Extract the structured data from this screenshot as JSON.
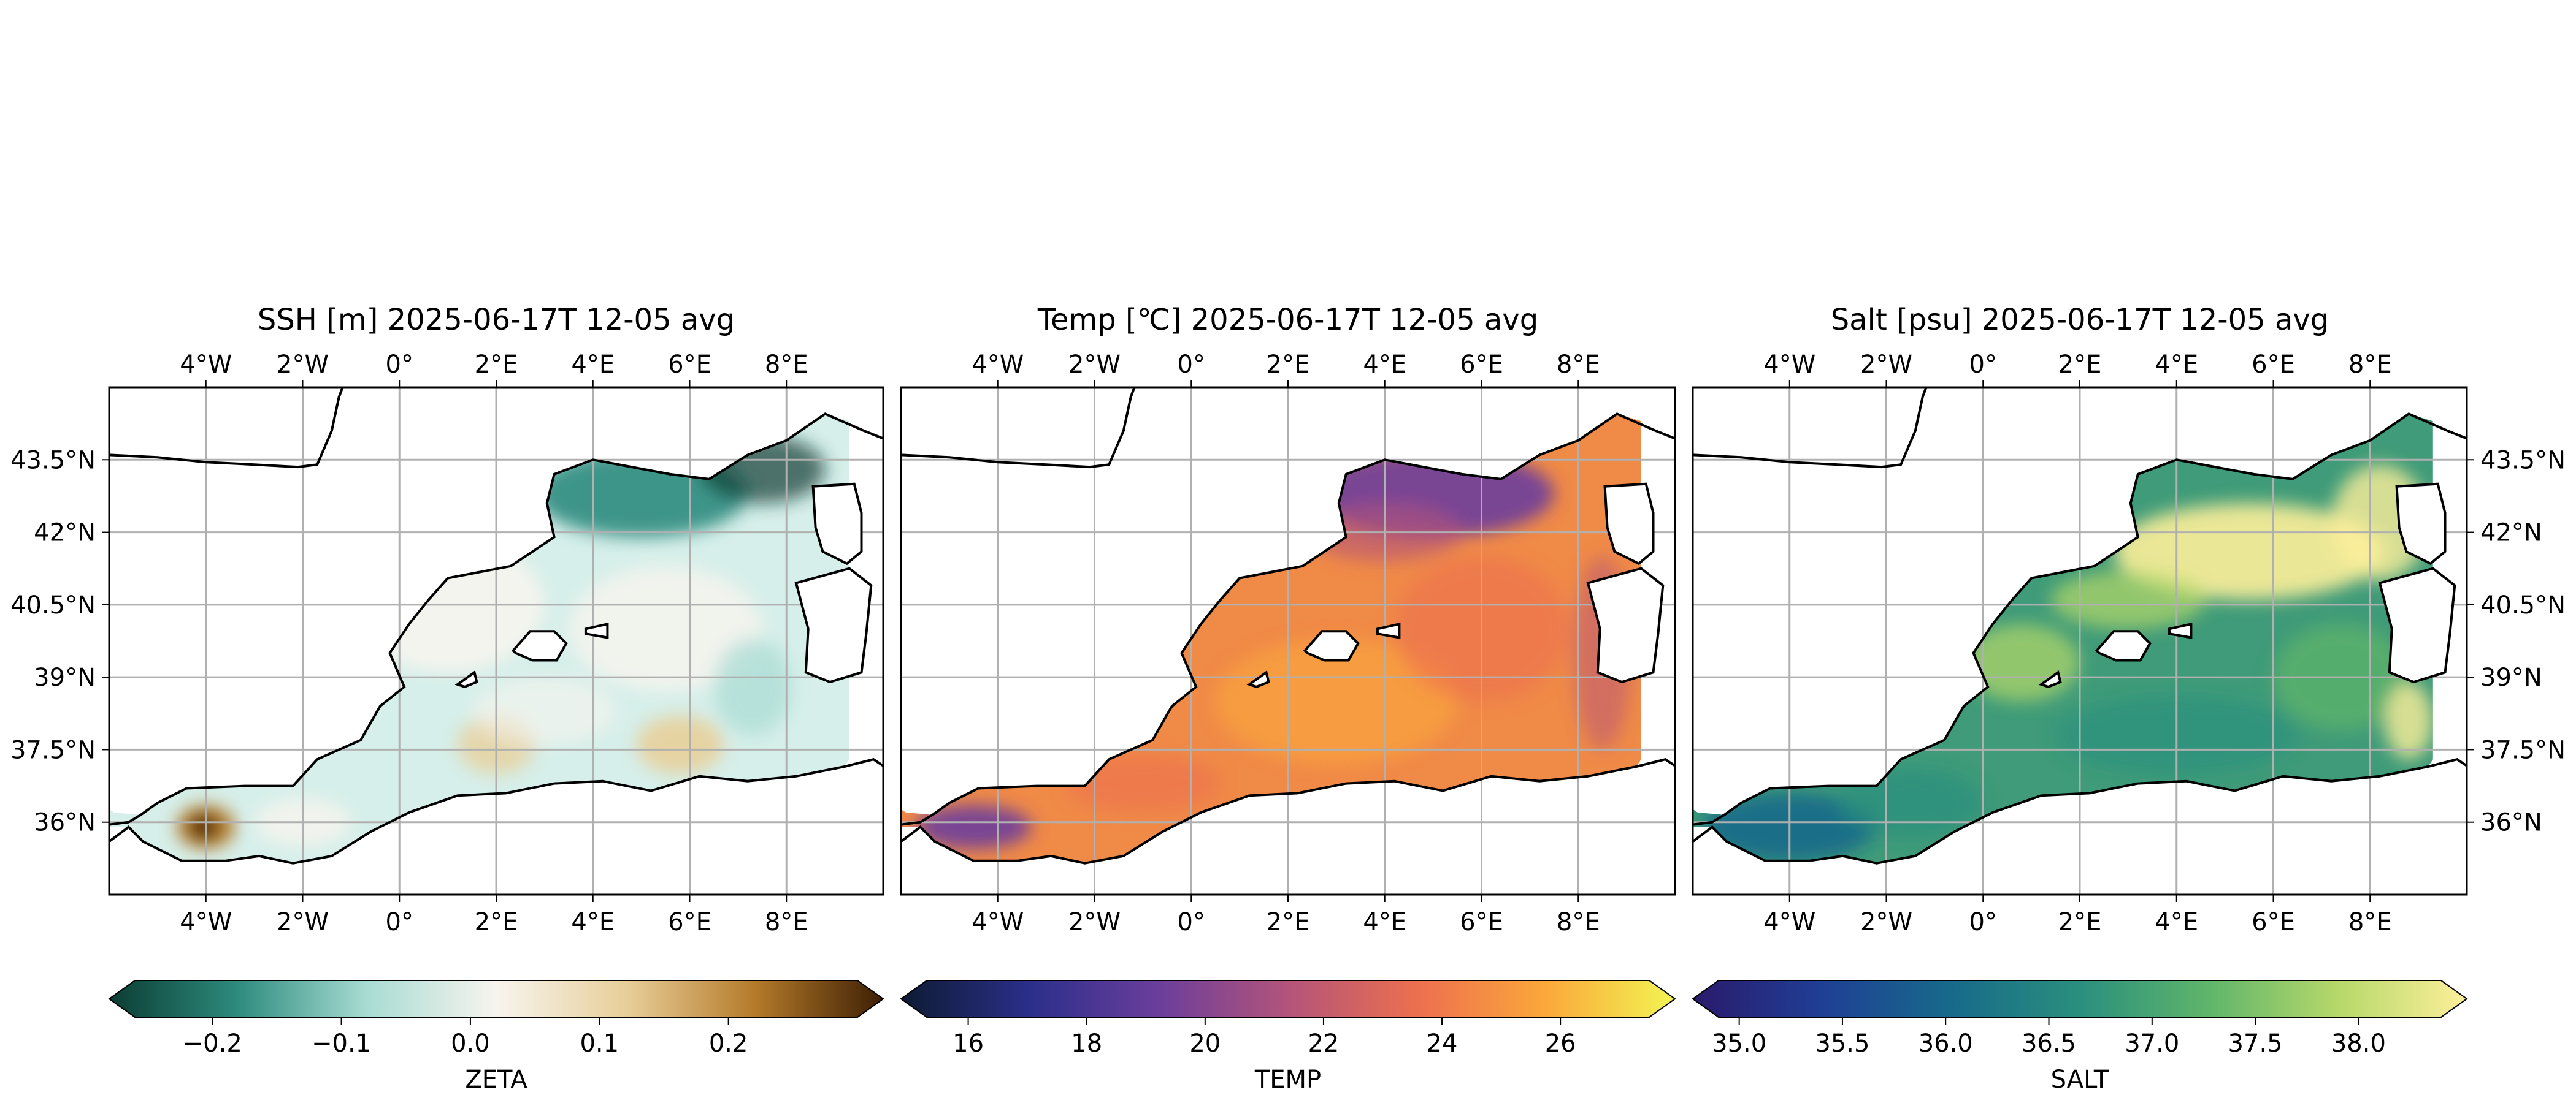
{
  "chart_data": [
    {
      "type": "heatmap",
      "title": "SSH [m] 2025-06-17T 12-05 avg",
      "variable": "ZETA",
      "colorbar": {
        "label": "ZETA",
        "ticks": [
          -0.2,
          -0.1,
          0.0,
          0.1,
          0.2
        ],
        "tick_labels": [
          "−0.2",
          "−0.1",
          "0.0",
          "0.1",
          "0.2"
        ],
        "range": [
          -0.26,
          0.3
        ],
        "extend": "both",
        "colormap": "diverging teal-white-brown",
        "colors": [
          "#0b3d33",
          "#2e8b7e",
          "#a8dcd3",
          "#f7f4ee",
          "#e8cf9a",
          "#b57b2a",
          "#3e1f04"
        ]
      },
      "x_ticks": [
        "4°W",
        "2°W",
        "0°",
        "2°E",
        "4°E",
        "6°E",
        "8°E"
      ],
      "x_tick_values": [
        -4,
        -2,
        0,
        2,
        4,
        6,
        8
      ],
      "y_ticks": [
        "43.5°N",
        "42°N",
        "40.5°N",
        "39°N",
        "37.5°N",
        "36°N"
      ],
      "y_tick_values": [
        43.5,
        42,
        40.5,
        39,
        37.5,
        36
      ],
      "y_tick_side": "left",
      "xlim": [
        -6,
        10
      ],
      "ylim": [
        34.5,
        45
      ],
      "grid": true
    },
    {
      "type": "heatmap",
      "title": "Temp [℃] 2025-06-17T 12-05 avg",
      "variable": "TEMP",
      "colorbar": {
        "label": "TEMP",
        "ticks": [
          16,
          18,
          20,
          22,
          24,
          26
        ],
        "tick_labels": [
          "16",
          "18",
          "20",
          "22",
          "24",
          "26"
        ],
        "range": [
          15.3,
          27.5
        ],
        "extend": "both",
        "colormap": "plasma-like",
        "colors": [
          "#0d1b33",
          "#2b2f8a",
          "#6b3e9c",
          "#b3547a",
          "#ec6f4f",
          "#fba83a",
          "#f2f553"
        ]
      },
      "x_ticks": [
        "4°W",
        "2°W",
        "0°",
        "2°E",
        "4°E",
        "6°E",
        "8°E"
      ],
      "x_tick_values": [
        -4,
        -2,
        0,
        2,
        4,
        6,
        8
      ],
      "y_ticks": [],
      "y_tick_values": [],
      "y_tick_side": "none",
      "xlim": [
        -6,
        10
      ],
      "ylim": [
        34.5,
        45
      ],
      "grid": true
    },
    {
      "type": "heatmap",
      "title": "Salt [psu] 2025-06-17T 12-05 avg",
      "variable": "SALT",
      "colorbar": {
        "label": "SALT",
        "ticks": [
          35.0,
          35.5,
          36.0,
          36.5,
          37.0,
          37.5,
          38.0
        ],
        "tick_labels": [
          "35.0",
          "35.5",
          "36.0",
          "36.5",
          "37.0",
          "37.5",
          "38.0"
        ],
        "range": [
          34.9,
          38.4
        ],
        "extend": "max",
        "colormap": "haline-like",
        "colors": [
          "#2a1a6b",
          "#1f3f95",
          "#176a8a",
          "#2a8f7e",
          "#5fb56a",
          "#b6d86a",
          "#fdef9a"
        ]
      },
      "x_ticks": [
        "4°W",
        "2°W",
        "0°",
        "2°E",
        "4°E",
        "6°E",
        "8°E"
      ],
      "x_tick_values": [
        -4,
        -2,
        0,
        2,
        4,
        6,
        8
      ],
      "y_ticks": [
        "43.5°N",
        "42°N",
        "40.5°N",
        "39°N",
        "37.5°N",
        "36°N"
      ],
      "y_tick_values": [
        43.5,
        42,
        40.5,
        39,
        37.5,
        36
      ],
      "y_tick_side": "right",
      "xlim": [
        -6,
        10
      ],
      "ylim": [
        34.5,
        45
      ],
      "grid": true
    }
  ]
}
